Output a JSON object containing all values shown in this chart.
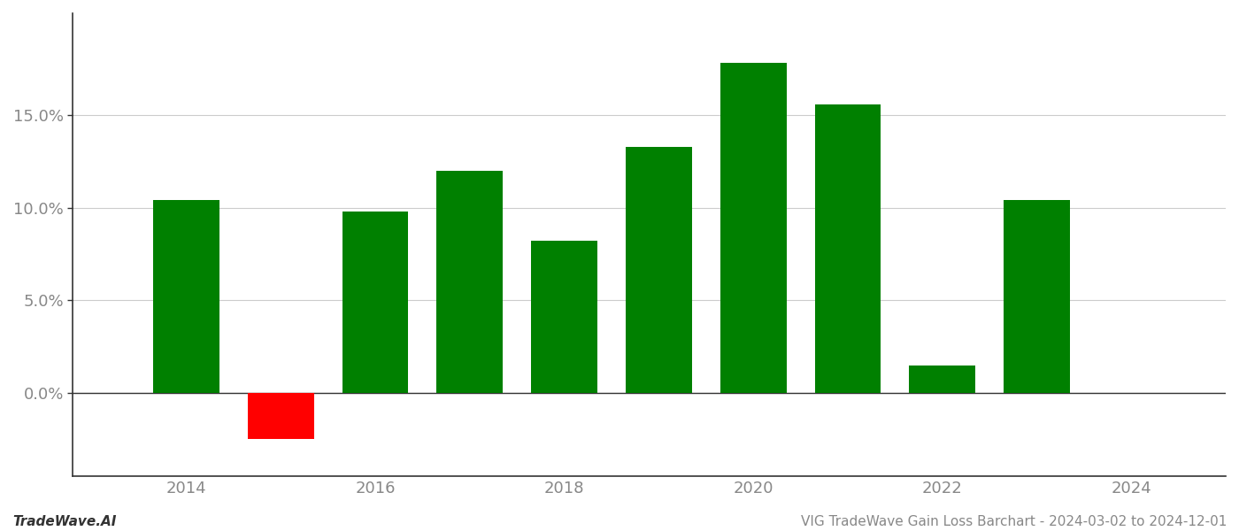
{
  "years": [
    2014,
    2015,
    2016,
    2017,
    2018,
    2019,
    2020,
    2021,
    2022,
    2023
  ],
  "values": [
    0.104,
    -0.025,
    0.098,
    0.12,
    0.082,
    0.133,
    0.178,
    0.156,
    0.015,
    0.104
  ],
  "colors": [
    "#008000",
    "#ff0000",
    "#008000",
    "#008000",
    "#008000",
    "#008000",
    "#008000",
    "#008000",
    "#008000",
    "#008000"
  ],
  "bar_width": 0.7,
  "ylim": [
    -0.045,
    0.205
  ],
  "yticks": [
    0.0,
    0.05,
    0.1,
    0.15
  ],
  "ytick_labels": [
    "0.0%",
    "5.0%",
    "10.0%",
    "15.0%"
  ],
  "xticks": [
    2014,
    2016,
    2018,
    2020,
    2022,
    2024
  ],
  "xlabel": "",
  "ylabel": "",
  "title": "",
  "footer_left": "TradeWave.AI",
  "footer_right": "VIG TradeWave Gain Loss Barchart - 2024-03-02 to 2024-12-01",
  "bg_color": "#ffffff",
  "grid_color": "#cccccc",
  "spine_color": "#333333",
  "tick_color": "#888888",
  "footer_fontsize": 11,
  "tick_fontsize": 13,
  "xlim": [
    2012.8,
    2025.0
  ]
}
